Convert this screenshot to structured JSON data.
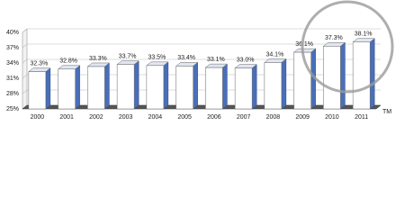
{
  "chart_data": {
    "type": "bar",
    "categories": [
      "2000",
      "2001",
      "2002",
      "2003",
      "2004",
      "2005",
      "2006",
      "2007",
      "2008",
      "2009",
      "2010",
      "2011"
    ],
    "values": [
      32.3,
      32.8,
      33.3,
      33.7,
      33.5,
      33.4,
      33.1,
      33.0,
      34.1,
      36.1,
      37.3,
      38.1
    ],
    "value_labels": [
      "32.3%",
      "32.8%",
      "33.3%",
      "33.7%",
      "33.5%",
      "33.4%",
      "33.1%",
      "33.0%",
      "34.1%",
      "36.1%",
      "37.3%",
      "38.1%"
    ],
    "color": "#4a6fb8",
    "ylim": [
      25,
      40
    ],
    "yticks": [
      {
        "value": 25,
        "label": "25%"
      },
      {
        "value": 28,
        "label": "28%"
      },
      {
        "value": 31,
        "label": "31%"
      },
      {
        "value": 34,
        "label": "34%"
      },
      {
        "value": 37,
        "label": "37%"
      },
      {
        "value": 40,
        "label": "40%"
      }
    ],
    "grid": true,
    "annotation": "TM"
  }
}
